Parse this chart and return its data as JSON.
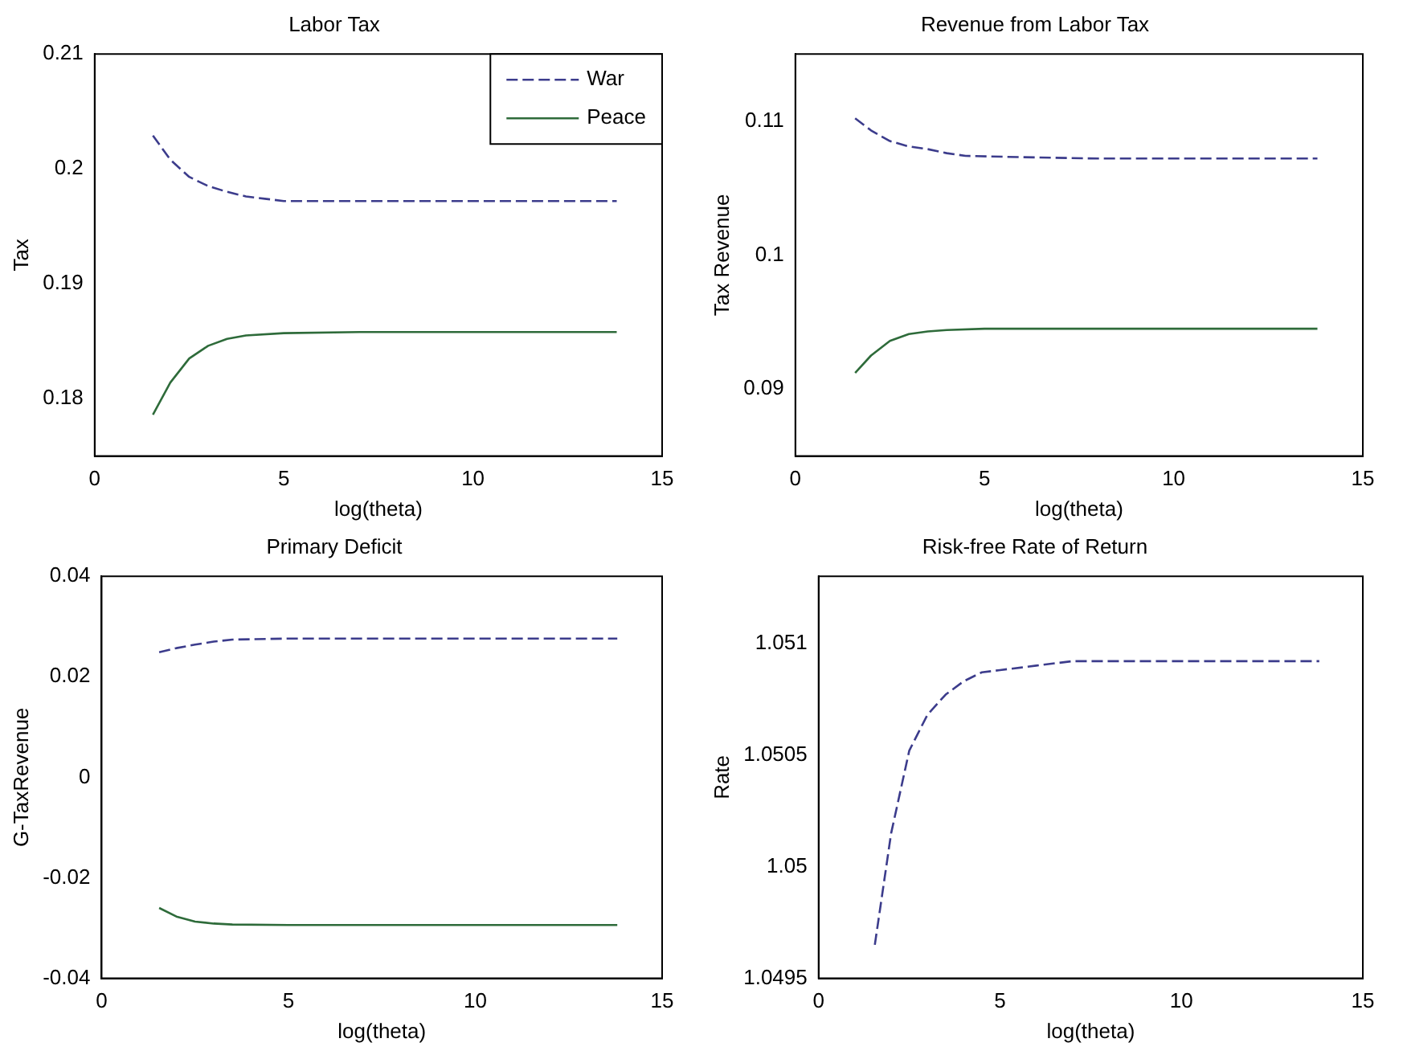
{
  "chart_data": [
    {
      "type": "line",
      "title": "Labor Tax",
      "xlabel": "log(theta)",
      "ylabel": "Tax",
      "xlim": [
        0,
        15
      ],
      "xticks": [
        0,
        5,
        10,
        15
      ],
      "ylim": [
        0.175,
        0.21
      ],
      "yticks": [
        0.18,
        0.19,
        0.2,
        0.21
      ],
      "grid": false,
      "legend": "top right",
      "marker": "none",
      "series": [
        {
          "name": "War",
          "color": "#3c3c8c",
          "line_style": "dashed",
          "x": [
            1.54,
            2,
            2.5,
            3,
            3.5,
            4,
            4.5,
            5,
            7,
            10,
            13.8
          ],
          "values": [
            0.2029,
            0.2008,
            0.1993,
            0.1985,
            0.198,
            0.1976,
            0.1974,
            0.1972,
            0.1972,
            0.1972,
            0.1972
          ]
        },
        {
          "name": "Peace",
          "color": "#2e6b3a",
          "line_style": "solid",
          "x": [
            1.54,
            2,
            2.5,
            3,
            3.5,
            4,
            5,
            7,
            10,
            13.8
          ],
          "values": [
            0.1786,
            0.1814,
            0.1835,
            0.1846,
            0.1852,
            0.1855,
            0.1857,
            0.1858,
            0.1858,
            0.1858
          ]
        }
      ]
    },
    {
      "type": "line",
      "title": "Revenue from Labor Tax",
      "xlabel": "log(theta)",
      "ylabel": "Tax Revenue",
      "xlim": [
        0,
        15
      ],
      "xticks": [
        0,
        5,
        10,
        15
      ],
      "ylim": [
        0.085,
        0.115
      ],
      "yticks": [
        0.09,
        0.1,
        0.11
      ],
      "grid": false,
      "legend": false,
      "marker": "none",
      "series": [
        {
          "color": "#3c3c8c",
          "line_style": "dashed",
          "x": [
            1.58,
            2,
            2.5,
            3,
            3.5,
            4,
            4.5,
            6,
            8,
            10,
            13.8
          ],
          "values": [
            0.1102,
            0.1093,
            0.1085,
            0.1081,
            0.1079,
            0.1076,
            0.1074,
            0.1073,
            0.1072,
            0.1072,
            0.1072
          ]
        },
        {
          "color": "#2e6b3a",
          "line_style": "solid",
          "x": [
            1.58,
            2,
            2.5,
            3,
            3.5,
            4,
            5,
            8,
            10,
            13.8
          ],
          "values": [
            0.0912,
            0.0925,
            0.0936,
            0.0941,
            0.0943,
            0.0944,
            0.0945,
            0.0945,
            0.0945,
            0.0945
          ]
        }
      ]
    },
    {
      "type": "line",
      "title": "Primary Deficit",
      "xlabel": "log(theta)",
      "ylabel": "G-TaxRevenue",
      "xlim": [
        0,
        15
      ],
      "xticks": [
        0,
        5,
        10,
        15
      ],
      "ylim": [
        -0.04,
        0.04
      ],
      "yticks": [
        -0.04,
        -0.02,
        0,
        0.02,
        0.04
      ],
      "grid": false,
      "legend": false,
      "marker": "none",
      "series": [
        {
          "color": "#3c3c8c",
          "line_style": "dashed",
          "x": [
            1.54,
            2,
            2.5,
            3,
            3.5,
            5,
            7,
            10,
            13.8
          ],
          "values": [
            0.0249,
            0.0257,
            0.0264,
            0.027,
            0.0274,
            0.0276,
            0.0276,
            0.0276,
            0.0276
          ]
        },
        {
          "color": "#2e6b3a",
          "line_style": "solid",
          "x": [
            1.54,
            2,
            2.5,
            3,
            3.5,
            5,
            7,
            10,
            13.8
          ],
          "values": [
            -0.026,
            -0.0277,
            -0.0287,
            -0.0291,
            -0.0293,
            -0.0294,
            -0.0294,
            -0.0294,
            -0.0294
          ]
        }
      ]
    },
    {
      "type": "line",
      "title": "Risk-free Rate of Return",
      "xlabel": "log(theta)",
      "ylabel": "Rate",
      "xlim": [
        0,
        15
      ],
      "xticks": [
        0,
        5,
        10,
        15
      ],
      "ylim": [
        1.0495,
        1.0513
      ],
      "yticks": [
        1.0495,
        1.05,
        1.0505,
        1.051
      ],
      "grid": false,
      "legend": false,
      "marker": "none",
      "series": [
        {
          "color": "#3c3c8c",
          "line_style": "dashed",
          "x": [
            1.55,
            2,
            2.5,
            3,
            3.5,
            4,
            4.5,
            5,
            6,
            7,
            10,
            13.8
          ],
          "values": [
            1.04965,
            1.05015,
            1.05052,
            1.05068,
            1.05077,
            1.05083,
            1.05087,
            1.05088,
            1.0509,
            1.05092,
            1.05092,
            1.05092
          ]
        }
      ]
    }
  ]
}
